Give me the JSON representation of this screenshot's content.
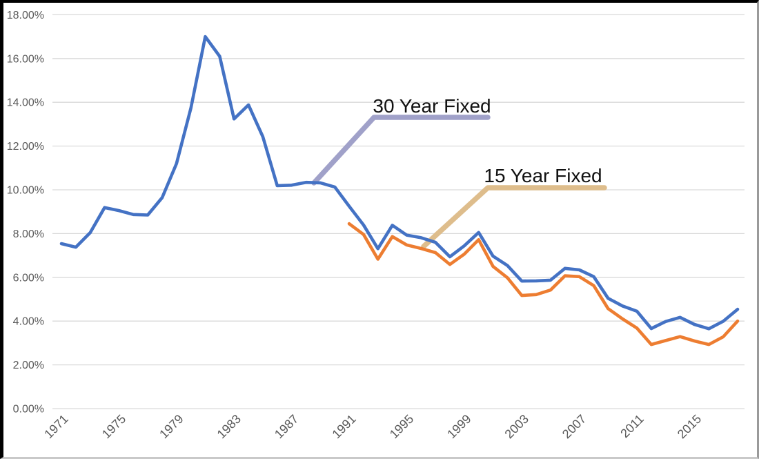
{
  "chart_data": {
    "type": "line",
    "title": "",
    "xlabel": "",
    "ylabel": "",
    "grid": true,
    "legend_position": "none",
    "ylim": [
      0,
      18
    ],
    "axis_colors": {
      "gridline": "#d9d9d9",
      "tick_text": "#595959"
    },
    "yticks": [
      {
        "value": 0,
        "label": "0.00%"
      },
      {
        "value": 2,
        "label": "2.00%"
      },
      {
        "value": 4,
        "label": "4.00%"
      },
      {
        "value": 6,
        "label": "6.00%"
      },
      {
        "value": 8,
        "label": "8.00%"
      },
      {
        "value": 10,
        "label": "10.00%"
      },
      {
        "value": 12,
        "label": "12.00%"
      },
      {
        "value": 14,
        "label": "14.00%"
      },
      {
        "value": 16,
        "label": "16.00%"
      },
      {
        "value": 18,
        "label": "18.00%"
      }
    ],
    "xticks": [
      {
        "year": 1971,
        "label": "1971"
      },
      {
        "year": 1975,
        "label": "1975"
      },
      {
        "year": 1979,
        "label": "1979"
      },
      {
        "year": 1983,
        "label": "1983"
      },
      {
        "year": 1987,
        "label": "1987"
      },
      {
        "year": 1991,
        "label": "1991"
      },
      {
        "year": 1995,
        "label": "1995"
      },
      {
        "year": 1999,
        "label": "1999"
      },
      {
        "year": 2003,
        "label": "2003"
      },
      {
        "year": 2007,
        "label": "2007"
      },
      {
        "year": 2011,
        "label": "2011"
      },
      {
        "year": 2015,
        "label": "2015"
      }
    ],
    "x_range": [
      1971,
      2018
    ],
    "series": [
      {
        "name": "30 Year Fixed",
        "color": "#4472c4",
        "start_year": 1971,
        "values": [
          7.54,
          7.38,
          8.04,
          9.19,
          9.05,
          8.87,
          8.85,
          9.64,
          11.2,
          13.74,
          17.0,
          16.1,
          13.24,
          13.88,
          12.43,
          10.19,
          10.21,
          10.34,
          10.32,
          10.13,
          9.25,
          8.39,
          7.31,
          8.38,
          7.93,
          7.81,
          7.6,
          6.94,
          7.44,
          8.05,
          6.97,
          6.54,
          5.83,
          5.84,
          5.87,
          6.41,
          6.34,
          6.03,
          5.04,
          4.69,
          4.45,
          3.66,
          3.98,
          4.17,
          3.85,
          3.65,
          3.99,
          4.54
        ]
      },
      {
        "name": "15 Year Fixed",
        "color": "#ed7d31",
        "start_year": 1991,
        "values": [
          8.45,
          7.96,
          6.83,
          7.86,
          7.48,
          7.32,
          7.13,
          6.59,
          7.06,
          7.72,
          6.5,
          5.98,
          5.17,
          5.21,
          5.42,
          6.07,
          6.03,
          5.62,
          4.57,
          4.1,
          3.68,
          2.93,
          3.11,
          3.29,
          3.09,
          2.93,
          3.28,
          4.0
        ]
      }
    ],
    "annotations": [
      {
        "label": "30 Year Fixed",
        "line_color": "#a0a1c9",
        "text_color": "#111111"
      },
      {
        "label": "15 Year Fixed",
        "line_color": "#debd8c",
        "text_color": "#111111"
      }
    ]
  }
}
